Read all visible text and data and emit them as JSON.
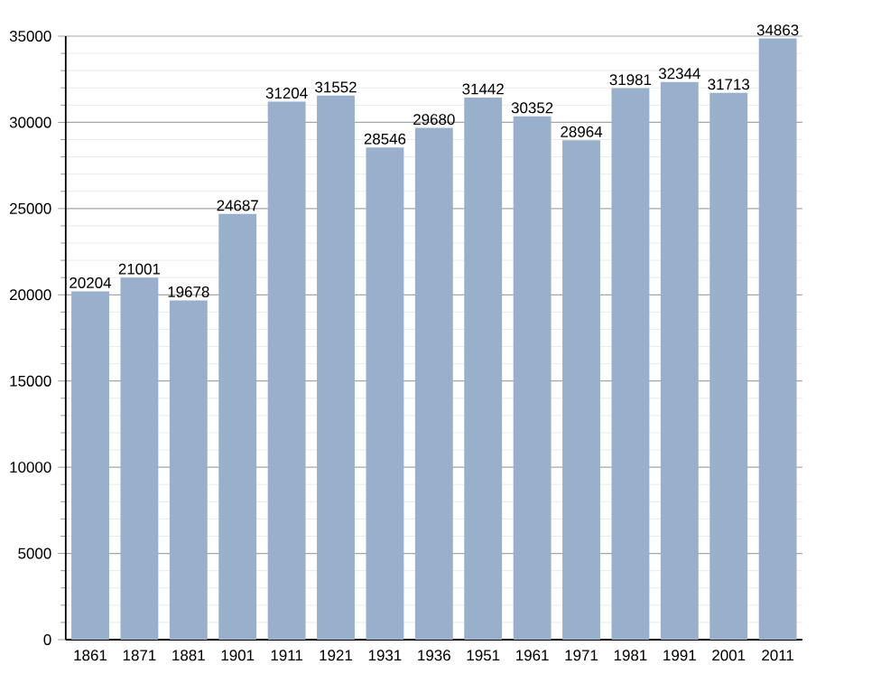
{
  "chart_data": {
    "type": "bar",
    "categories": [
      "1861",
      "1871",
      "1881",
      "1901",
      "1911",
      "1921",
      "1931",
      "1936",
      "1951",
      "1961",
      "1971",
      "1981",
      "1991",
      "2001",
      "2011"
    ],
    "values": [
      20204,
      21001,
      19678,
      24687,
      31204,
      31552,
      28546,
      29680,
      31442,
      30352,
      28964,
      31981,
      32344,
      31713,
      34863
    ],
    "color": "#98b0cb",
    "ylim": [
      0,
      35000
    ],
    "yticks": [
      0,
      5000,
      10000,
      15000,
      20000,
      25000,
      30000,
      35000
    ],
    "grid": "y",
    "data_labels": true
  }
}
